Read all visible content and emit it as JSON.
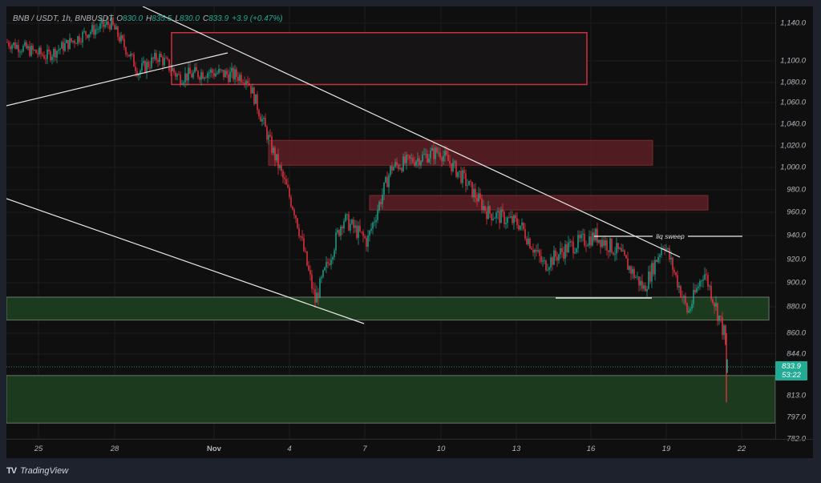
{
  "header": {
    "symbol": "BNB / USDT, 1h, BNBUSDT",
    "open_label": "O",
    "open": "830.0",
    "high_label": "H",
    "high": "835.5",
    "low_label": "L",
    "low": "830.0",
    "close_label": "C",
    "close": "833.9",
    "change": "+3.9 (+0.47%)"
  },
  "price_tag": {
    "price": "833.9",
    "countdown": "53:22"
  },
  "footer": {
    "logo_glyph": "TV",
    "brand": "TradingView"
  },
  "annotations": {
    "liq_sweep": "liq sweep"
  },
  "colors": {
    "bull": "#22ab94",
    "bear": "#f23645",
    "supply_zone": "#5c1f24",
    "demand_zone": "#1b3a1e",
    "background": "#0f0f0f",
    "frame": "#1e222d"
  },
  "chart_data": {
    "type": "candlestick",
    "title": "BNB / USDT, 1h, BNBUSDT",
    "xlabel": "",
    "ylabel": "",
    "x_ticks": [
      "25",
      "28",
      "Nov",
      "4",
      "7",
      "10",
      "13",
      "16",
      "19",
      "22"
    ],
    "y_ticks": [
      "1,140.0",
      "1,100.0",
      "1,080.0",
      "1,060.0",
      "1,040.0",
      "1,020.0",
      "1,000.0",
      "980.0",
      "960.0",
      "940.0",
      "920.0",
      "900.0",
      "880.0",
      "860.0",
      "844.0",
      "813.0",
      "797.0",
      "782.0"
    ],
    "ylim": [
      782,
      1150
    ],
    "grid": true,
    "last_price": 833.9,
    "ohlc_last": {
      "open": 830.0,
      "high": 835.5,
      "low": 830.0,
      "close": 833.9,
      "change": 3.9,
      "change_pct": 0.47
    },
    "approx_close_path": [
      {
        "x": "24",
        "price": 1120
      },
      {
        "x": "26",
        "price": 1105
      },
      {
        "x": "27",
        "price": 1130
      },
      {
        "x": "28",
        "price": 1140
      },
      {
        "x": "29",
        "price": 1090
      },
      {
        "x": "30",
        "price": 1105
      },
      {
        "x": "31",
        "price": 1085
      },
      {
        "x": "Nov 1",
        "price": 1090
      },
      {
        "x": "Nov 2",
        "price": 1085
      },
      {
        "x": "Nov 3",
        "price": 1020
      },
      {
        "x": "Nov 4",
        "price": 960
      },
      {
        "x": "Nov 5",
        "price": 885
      },
      {
        "x": "Nov 6",
        "price": 955
      },
      {
        "x": "Nov 7",
        "price": 935
      },
      {
        "x": "Nov 8",
        "price": 1000
      },
      {
        "x": "Nov 10",
        "price": 1015
      },
      {
        "x": "Nov 11",
        "price": 990
      },
      {
        "x": "Nov 12",
        "price": 960
      },
      {
        "x": "Nov 13",
        "price": 950
      },
      {
        "x": "Nov 14",
        "price": 915
      },
      {
        "x": "Nov 15",
        "price": 930
      },
      {
        "x": "Nov 16",
        "price": 940
      },
      {
        "x": "Nov 17",
        "price": 925
      },
      {
        "x": "Nov 18",
        "price": 895
      },
      {
        "x": "Nov 19",
        "price": 935
      },
      {
        "x": "Nov 20",
        "price": 875
      },
      {
        "x": "Nov 20.5",
        "price": 910
      },
      {
        "x": "Nov 21",
        "price": 860
      },
      {
        "x": "Nov 21.5",
        "price": 833.9
      }
    ],
    "zones": [
      {
        "type": "supply",
        "style": "outline",
        "top": 1130,
        "bottom": 1078
      },
      {
        "type": "supply",
        "style": "filled",
        "top": 1025,
        "bottom": 1002
      },
      {
        "type": "supply",
        "style": "filled",
        "top": 975,
        "bottom": 962
      },
      {
        "type": "demand",
        "style": "filled",
        "top": 888,
        "bottom": 870
      },
      {
        "type": "demand",
        "style": "filled",
        "top": 828,
        "bottom": 793
      }
    ],
    "trendlines": [
      "descending resistance from ~Oct 27 high to ~Nov 19",
      "ascending line from Oct 24 to ~Oct 31",
      "descending channel lower line from Oct 24 to ~Nov 6",
      "horizontal liq sweep level ~940 (Nov 16 – Nov 22)",
      "horizontal support ~888 (Nov 14 – Nov 18)"
    ],
    "legend_position": "top-left"
  }
}
